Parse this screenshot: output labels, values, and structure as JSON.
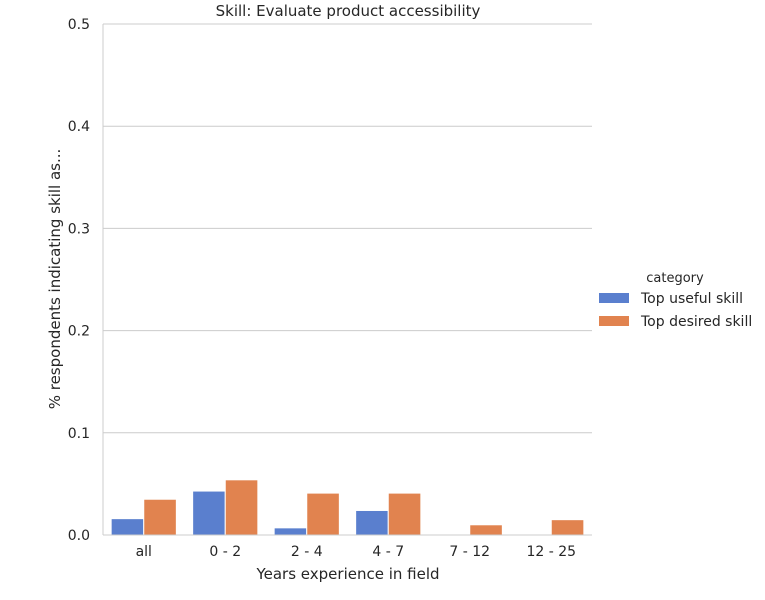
{
  "chart_data": {
    "type": "bar",
    "title": "Skill: Evaluate product accessibility",
    "xlabel": "Years experience in field",
    "ylabel": "% respondents indicating skill as...",
    "categories": [
      "all",
      "0 - 2",
      "2 - 4",
      "4 - 7",
      "7 - 12",
      "12 - 25"
    ],
    "ylim": [
      0,
      0.5
    ],
    "yticks": [
      "0.0",
      "0.1",
      "0.2",
      "0.3",
      "0.4",
      "0.5"
    ],
    "grid": "horizontal",
    "legend_title": "category",
    "legend_position": "right",
    "series": [
      {
        "name": "Top useful skill",
        "color": "#5a7fce",
        "values": [
          0.016,
          0.043,
          0.007,
          0.024,
          0.0,
          0.0
        ]
      },
      {
        "name": "Top desired skill",
        "color": "#e1834f",
        "values": [
          0.035,
          0.054,
          0.041,
          0.041,
          0.01,
          0.015
        ]
      }
    ]
  }
}
